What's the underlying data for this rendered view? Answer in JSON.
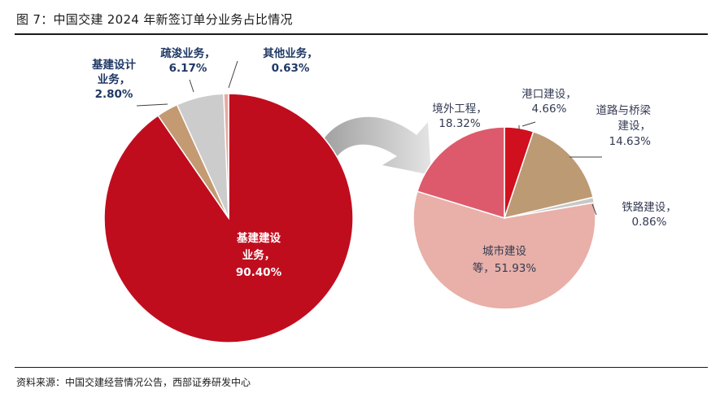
{
  "figure": {
    "title": "图 7：中国交建 2024 年新签订单分业务占比情况",
    "source": "资料来源：中国交建经营情况公告，西部证券研发中心"
  },
  "chart_data": [
    {
      "type": "pie",
      "title": "",
      "slices": [
        {
          "name": "基建建设业务",
          "value": 90.4,
          "label_lines": [
            "基建建设",
            "业务，",
            "90.40%"
          ],
          "color": "#c00d1e"
        },
        {
          "name": "基建设计业务",
          "value": 2.8,
          "label_lines": [
            "基建设计",
            "业务，",
            "2.80%"
          ],
          "color": "#c49a72"
        },
        {
          "name": "疏浚业务",
          "value": 6.17,
          "label_lines": [
            "疏浚业务，",
            "6.17%"
          ],
          "color": "#cccccc"
        },
        {
          "name": "其他业务",
          "value": 0.63,
          "label_lines": [
            "其他业务，",
            "0.63%"
          ],
          "color": "#e8a9a0"
        }
      ]
    },
    {
      "type": "pie",
      "title": "",
      "slices": [
        {
          "name": "港口建设",
          "value": 4.66,
          "label_lines": [
            "港口建设，",
            "4.66%"
          ],
          "color": "#d0101e"
        },
        {
          "name": "道路与桥梁建设",
          "value": 14.63,
          "label_lines": [
            "道路与桥梁",
            "建设，",
            "14.63%"
          ],
          "color": "#bc9a74"
        },
        {
          "name": "铁路建设",
          "value": 0.86,
          "label_lines": [
            "铁路建设，",
            "0.86%"
          ],
          "color": "#c8c8c8"
        },
        {
          "name": "城市建设等",
          "value": 51.93,
          "label_lines": [
            "城市建设",
            "等，51.93%"
          ],
          "color": "#e8b0a8"
        },
        {
          "name": "境外工程",
          "value": 18.32,
          "label_lines": [
            "境外工程，",
            "18.32%"
          ],
          "color": "#dd5a6c"
        }
      ]
    }
  ]
}
